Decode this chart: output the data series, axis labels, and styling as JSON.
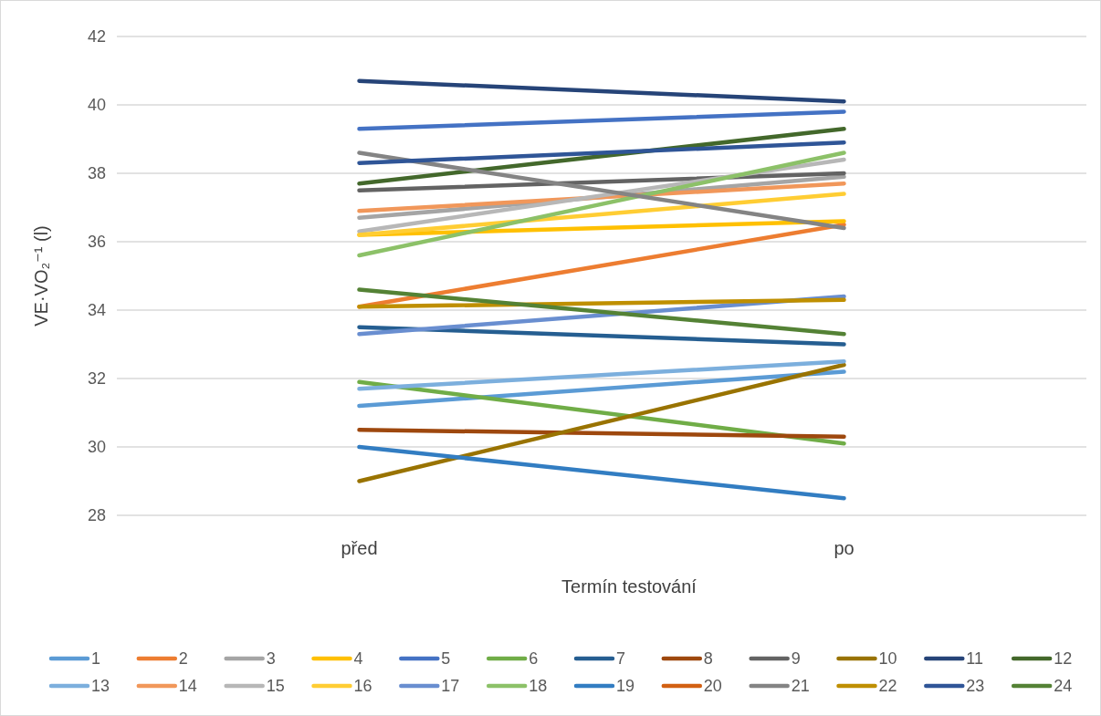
{
  "chart_data": {
    "type": "line",
    "xlabel": "Termín testování",
    "ylabel": "VE·VO₂⁻¹ (l)",
    "categories": [
      "před",
      "po"
    ],
    "ylim": [
      28,
      42
    ],
    "yticks": [
      28,
      30,
      32,
      34,
      36,
      38,
      40,
      42
    ],
    "grid": "y",
    "legend": "bottom",
    "marker": "none",
    "line_style": "solid",
    "series": [
      {
        "name": "1",
        "color": "#5b9bd5",
        "values": [
          31.2,
          32.2
        ]
      },
      {
        "name": "2",
        "color": "#ed7d31",
        "values": [
          34.1,
          36.5
        ]
      },
      {
        "name": "3",
        "color": "#a5a5a5",
        "values": [
          36.7,
          37.9
        ]
      },
      {
        "name": "4",
        "color": "#ffc000",
        "values": [
          36.2,
          36.6
        ]
      },
      {
        "name": "5",
        "color": "#4472c4",
        "values": [
          39.3,
          39.8
        ]
      },
      {
        "name": "6",
        "color": "#70ad47",
        "values": [
          31.9,
          30.1
        ]
      },
      {
        "name": "7",
        "color": "#255e91",
        "values": [
          33.5,
          33.0
        ]
      },
      {
        "name": "8",
        "color": "#9e480e",
        "values": [
          30.5,
          30.3
        ]
      },
      {
        "name": "9",
        "color": "#636363",
        "values": [
          37.5,
          38.0
        ]
      },
      {
        "name": "10",
        "color": "#997300",
        "values": [
          29.0,
          32.4
        ]
      },
      {
        "name": "11",
        "color": "#264478",
        "values": [
          40.7,
          40.1
        ]
      },
      {
        "name": "12",
        "color": "#43682b",
        "values": [
          37.7,
          39.3
        ]
      },
      {
        "name": "13",
        "color": "#7cafdd",
        "values": [
          31.7,
          32.5
        ]
      },
      {
        "name": "14",
        "color": "#f1975a",
        "values": [
          36.9,
          37.7
        ]
      },
      {
        "name": "15",
        "color": "#b7b7b7",
        "values": [
          36.3,
          38.4
        ]
      },
      {
        "name": "16",
        "color": "#ffcd33",
        "values": [
          36.2,
          37.4
        ]
      },
      {
        "name": "17",
        "color": "#698ed0",
        "values": [
          33.3,
          34.4
        ]
      },
      {
        "name": "18",
        "color": "#8cc168",
        "values": [
          35.6,
          38.6
        ]
      },
      {
        "name": "19",
        "color": "#327dc2",
        "values": [
          30.0,
          28.5
        ]
      },
      {
        "name": "20",
        "color": "#d26012",
        "values": [
          null,
          null
        ]
      },
      {
        "name": "21",
        "color": "#848484",
        "values": [
          38.6,
          36.4
        ]
      },
      {
        "name": "22",
        "color": "#bf8f00",
        "values": [
          34.1,
          34.3
        ]
      },
      {
        "name": "23",
        "color": "#2f5597",
        "values": [
          38.3,
          38.9
        ]
      },
      {
        "name": "24",
        "color": "#548235",
        "values": [
          34.6,
          33.3
        ]
      }
    ]
  }
}
